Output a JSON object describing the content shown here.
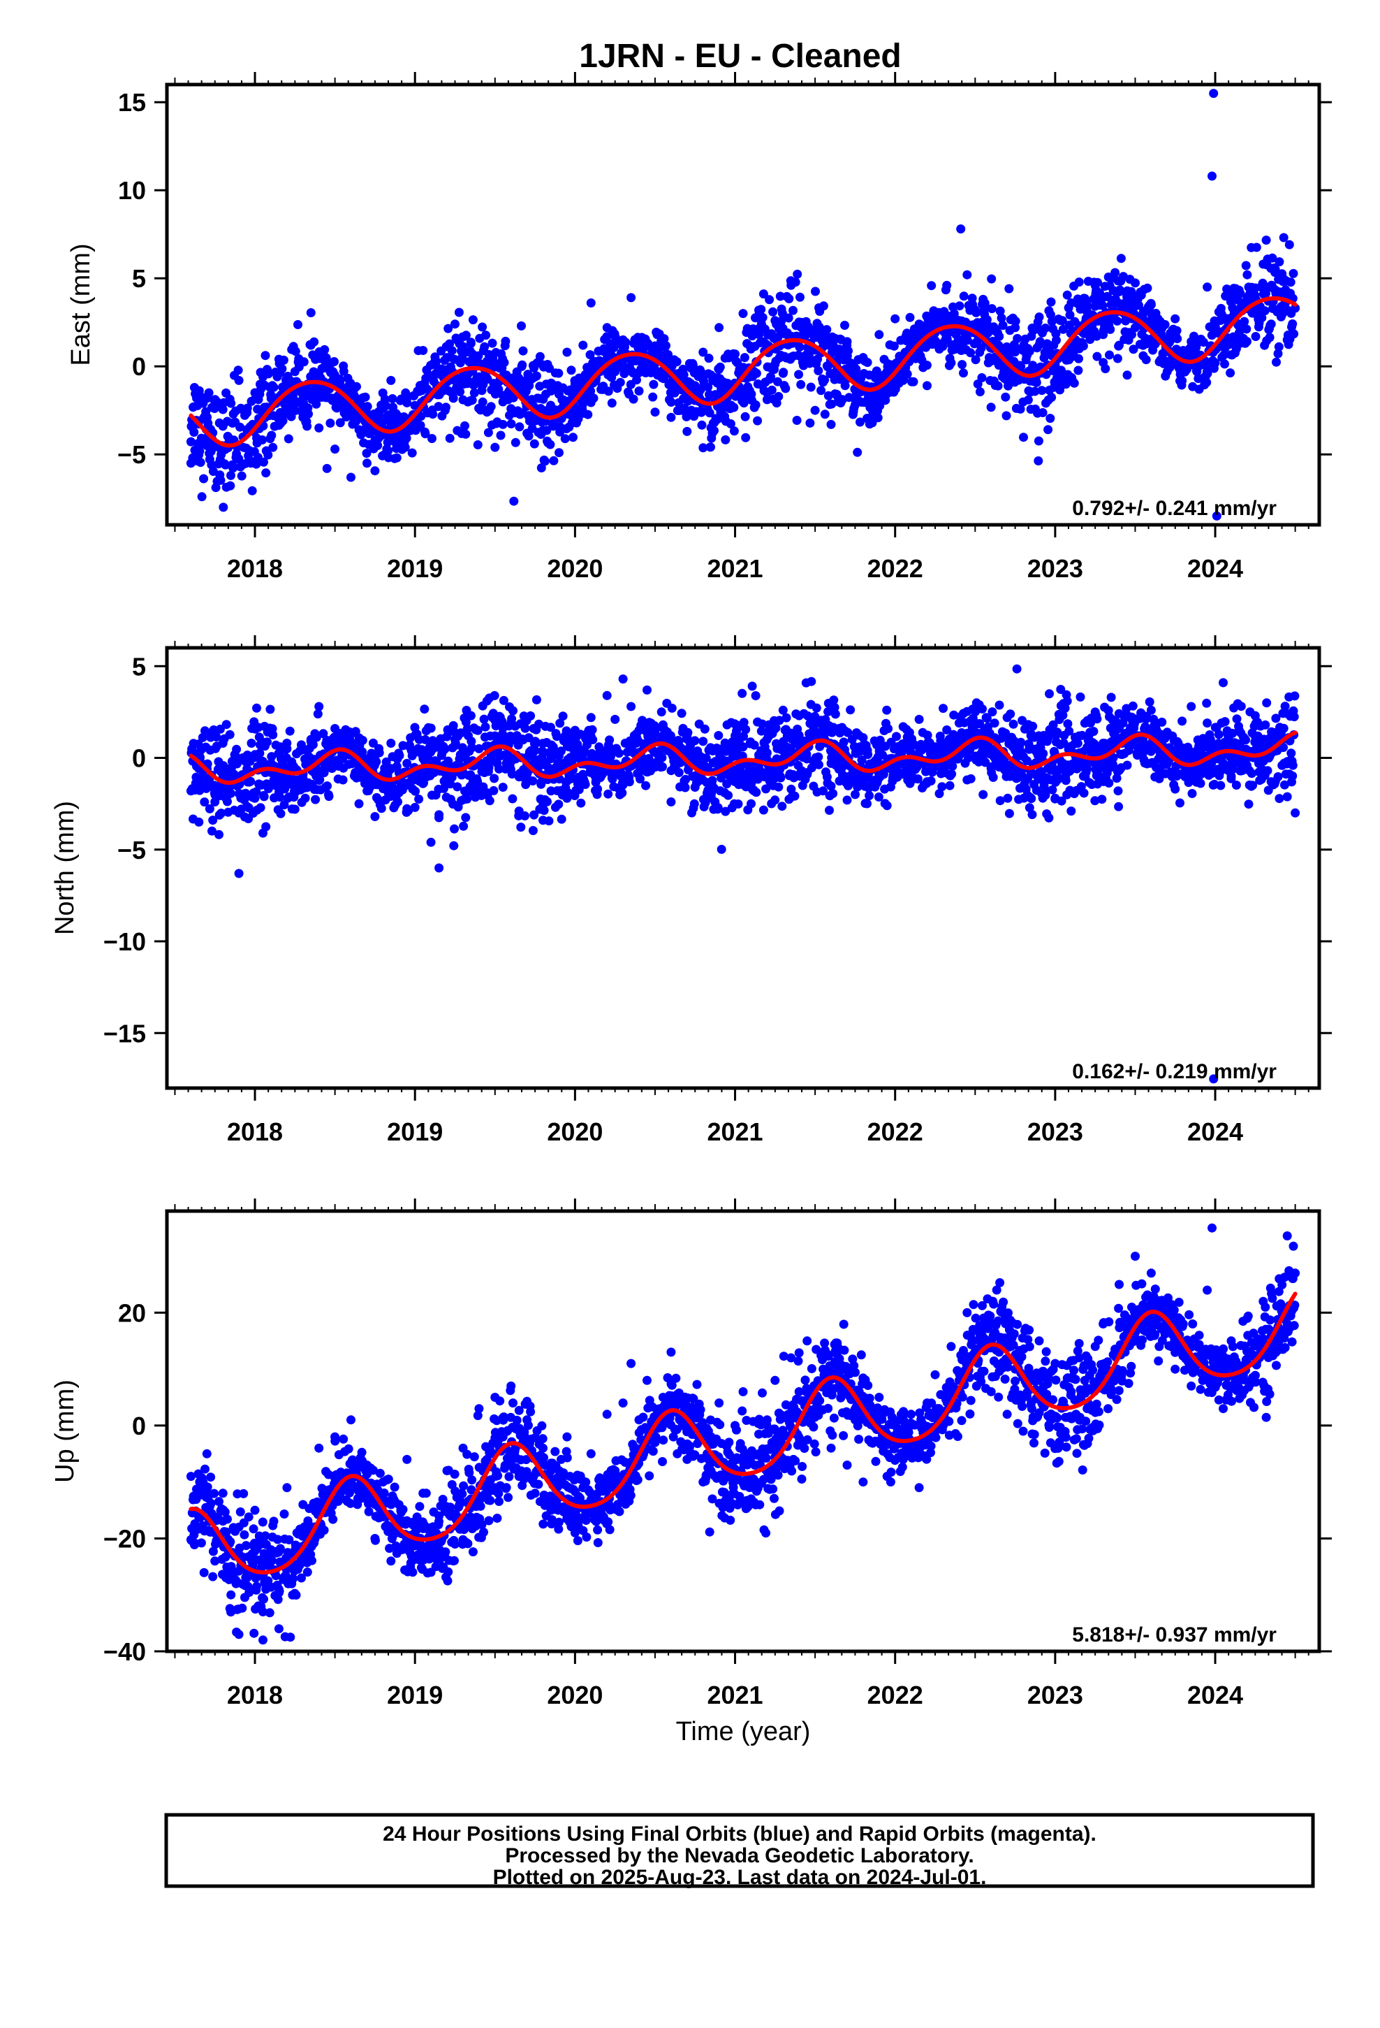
{
  "title": "1JRN  - EU - Cleaned",
  "xlabel": "Time (year)",
  "colors": {
    "points": "#0000ff",
    "fit": "#ff0000",
    "frame": "#000000"
  },
  "footer": {
    "lines": [
      "24 Hour Positions Using Final Orbits (blue) and Rapid Orbits (magenta).",
      "Processed by the Nevada Geodetic Laboratory.",
      "Plotted on 2025-Aug-23. Last data on 2024-Jul-01."
    ]
  },
  "chart_data": [
    {
      "type": "scatter",
      "component": "East",
      "ylabel": "East (mm)",
      "xlim": [
        2017.45,
        2024.65
      ],
      "ylim": [
        -9,
        16
      ],
      "xticks": [
        "2018",
        "2019",
        "2020",
        "2021",
        "2022",
        "2023",
        "2024"
      ],
      "yticks": [
        15,
        10,
        5,
        0,
        -5
      ],
      "yticklabels": [
        "15",
        "10",
        "5",
        "0",
        "−5"
      ],
      "rate_label": "0.792+/- 0.241 mm/yr",
      "data_start": 2017.6,
      "data_end": 2024.5,
      "series": [
        {
          "name": "Final Orbits",
          "kind": "points",
          "x": [
            2017.6,
            2017.65,
            2017.7,
            2017.75,
            2017.8,
            2017.85,
            2017.9,
            2017.95,
            2018.0,
            2018.05,
            2018.1,
            2018.15,
            2018.2,
            2018.25,
            2018.3,
            2018.35,
            2018.4,
            2018.45,
            2018.5,
            2018.55,
            2018.6,
            2018.65,
            2018.7,
            2018.75,
            2018.8,
            2018.85,
            2018.9,
            2018.95,
            2019.0,
            2019.05,
            2019.1,
            2019.15,
            2019.2,
            2019.25,
            2019.3,
            2019.35,
            2019.4,
            2019.45,
            2019.5,
            2019.55,
            2019.6,
            2019.65,
            2019.7,
            2019.75,
            2019.8,
            2019.85,
            2019.9,
            2019.95,
            2020.0,
            2020.05,
            2020.1,
            2020.15,
            2020.2,
            2020.25,
            2020.3,
            2020.35,
            2020.4,
            2020.45,
            2020.5,
            2020.55,
            2020.6,
            2020.65,
            2020.7,
            2020.75,
            2020.8,
            2020.85,
            2020.9,
            2020.95,
            2021.0,
            2021.05,
            2021.1,
            2021.15,
            2021.2,
            2021.25,
            2021.3,
            2021.35,
            2021.4,
            2021.45,
            2021.5,
            2021.55,
            2021.6,
            2021.65,
            2021.7,
            2021.75,
            2021.8,
            2021.85,
            2021.9,
            2021.95,
            2022.0,
            2022.05,
            2022.1,
            2022.15,
            2022.2,
            2022.25,
            2022.3,
            2022.35,
            2022.4,
            2022.45,
            2022.5,
            2022.55,
            2022.6,
            2022.65,
            2022.7,
            2022.75,
            2022.8,
            2022.85,
            2022.9,
            2022.95,
            2023.0,
            2023.05,
            2023.1,
            2023.15,
            2023.2,
            2023.25,
            2023.3,
            2023.35,
            2023.4,
            2023.45,
            2023.5,
            2023.55,
            2023.6,
            2023.65,
            2023.7,
            2023.75,
            2023.8,
            2023.85,
            2023.9,
            2023.95,
            2024.0,
            2024.05,
            2024.1,
            2024.15,
            2024.2,
            2024.25,
            2024.3,
            2024.35,
            2024.4,
            2024.45,
            2024.5,
            2023.99,
            2023.98,
            2022.41,
            2024.01
          ],
          "y": [
            -5.5,
            -3.1,
            -4.5,
            -2.0,
            -3.4,
            -2.1,
            -0.8,
            -3.6,
            -1.5,
            -0.6,
            -2.3,
            0.4,
            -1.8,
            -0.3,
            -2.9,
            1.2,
            -3.5,
            -5.8,
            -4.7,
            -2.0,
            -6.3,
            -3.6,
            -5.5,
            -4.2,
            -2.4,
            -0.8,
            -4.0,
            -1.8,
            -3.3,
            0.9,
            -1.5,
            -0.2,
            0.5,
            2.4,
            -1.9,
            1.3,
            -0.6,
            -2.6,
            -4.6,
            -3.3,
            -2.4,
            -1.0,
            -3.8,
            -0.6,
            -2.5,
            -1.4,
            -4.9,
            0.8,
            -1.0,
            1.2,
            3.6,
            0.1,
            2.2,
            -0.3,
            1.5,
            3.9,
            -1.4,
            1.3,
            -2.6,
            0.6,
            -2.9,
            -0.4,
            -3.7,
            -1.1,
            0.8,
            -0.5,
            2.2,
            -1.8,
            0.7,
            3.0,
            -0.1,
            1.8,
            -1.5,
            2.6,
            -0.4,
            4.6,
            0.6,
            2.1,
            -2.5,
            -0.9,
            -3.3,
            -0.4,
            1.4,
            -2.2,
            0.5,
            -1.6,
            1.8,
            -0.3,
            2.7,
            -0.8,
            0.9,
            2.4,
            -1.1,
            1.3,
            3.0,
            0.2,
            2.6,
            5.2,
            1.3,
            3.8,
            0.3,
            1.7,
            -0.8,
            2.2,
            0.9,
            -0.5,
            2.8,
            1.1,
            0.1,
            2.1,
            3.6,
            1.0,
            2.5,
            4.6,
            1.8,
            3.5,
            1.2,
            -0.5,
            2.2,
            0.6,
            3.5,
            1.8,
            -0.3,
            2.7,
            0.9,
            1.4,
            -1.3,
            4.5,
            0.2,
            2.8,
            4.1,
            1.9,
            5.2,
            3.0,
            5.8,
            2.4,
            4.0,
            1.5,
            3.3,
            15.5,
            10.8,
            7.8,
            -8.5
          ]
        },
        {
          "name": "Model fit",
          "kind": "line",
          "trend_mm_per_yr": 0.792,
          "value_at_2021": -0.25,
          "annual": {
            "amplitude": 1.6,
            "peak_year_fraction": 0.35
          },
          "semiannual": {
            "amplitude": 0.15,
            "peak_year_fraction": 0.1
          }
        }
      ]
    },
    {
      "type": "scatter",
      "component": "North",
      "ylabel": "North (mm)",
      "xlim": [
        2017.45,
        2024.65
      ],
      "ylim": [
        -18,
        6
      ],
      "xticks": [
        "2018",
        "2019",
        "2020",
        "2021",
        "2022",
        "2023",
        "2024"
      ],
      "yticks": [
        5,
        0,
        -5,
        -10,
        -15
      ],
      "yticklabels": [
        "5",
        "0",
        "−5",
        "−10",
        "−15"
      ],
      "rate_label": "0.162+/- 0.219 mm/yr",
      "data_start": 2017.6,
      "data_end": 2024.5,
      "series": [
        {
          "name": "Final Orbits",
          "kind": "points",
          "x": [
            2017.6,
            2017.65,
            2017.7,
            2017.75,
            2017.8,
            2017.85,
            2017.9,
            2017.95,
            2018.0,
            2018.05,
            2018.1,
            2018.15,
            2018.2,
            2018.25,
            2018.3,
            2018.35,
            2018.4,
            2018.45,
            2018.5,
            2018.55,
            2018.6,
            2018.65,
            2018.7,
            2018.75,
            2018.8,
            2018.85,
            2018.9,
            2018.95,
            2019.0,
            2019.05,
            2019.1,
            2019.15,
            2019.2,
            2019.25,
            2019.3,
            2019.35,
            2019.4,
            2019.45,
            2019.5,
            2019.55,
            2019.6,
            2019.65,
            2019.7,
            2019.75,
            2019.8,
            2019.85,
            2019.9,
            2019.95,
            2020.0,
            2020.05,
            2020.1,
            2020.15,
            2020.2,
            2020.25,
            2020.3,
            2020.35,
            2020.4,
            2020.45,
            2020.5,
            2020.55,
            2020.6,
            2020.65,
            2020.7,
            2020.75,
            2020.8,
            2020.85,
            2020.9,
            2020.95,
            2021.0,
            2021.05,
            2021.1,
            2021.15,
            2021.2,
            2021.25,
            2021.3,
            2021.35,
            2021.4,
            2021.45,
            2021.5,
            2021.55,
            2021.6,
            2021.65,
            2021.7,
            2021.75,
            2021.8,
            2021.85,
            2021.9,
            2021.95,
            2022.0,
            2022.05,
            2022.1,
            2022.15,
            2022.2,
            2022.25,
            2022.3,
            2022.35,
            2022.4,
            2022.45,
            2022.5,
            2022.55,
            2022.6,
            2022.65,
            2022.7,
            2022.75,
            2022.8,
            2022.85,
            2022.9,
            2022.95,
            2023.0,
            2023.05,
            2023.1,
            2023.15,
            2023.2,
            2023.25,
            2023.3,
            2023.35,
            2023.4,
            2023.45,
            2023.5,
            2023.55,
            2023.6,
            2023.65,
            2023.7,
            2023.75,
            2023.8,
            2023.85,
            2023.9,
            2023.95,
            2024.0,
            2024.05,
            2024.1,
            2024.15,
            2024.2,
            2024.25,
            2024.3,
            2024.35,
            2024.4,
            2024.45,
            2024.5,
            2017.9,
            2019.15,
            2023.99
          ],
          "y": [
            -1.8,
            -3.5,
            -0.4,
            -2.4,
            0.8,
            -1.5,
            -3.0,
            -0.6,
            -2.2,
            -4.1,
            -0.8,
            -1.9,
            0.5,
            -2.8,
            -1.1,
            0.9,
            2.8,
            -0.2,
            1.6,
            -1.2,
            0.4,
            -2.5,
            -0.7,
            -3.2,
            -1.5,
            0.8,
            -1.9,
            -0.3,
            -2.7,
            -1.4,
            -4.6,
            -3.1,
            -1.2,
            1.0,
            -0.8,
            2.3,
            0.5,
            3.1,
            1.2,
            -1.6,
            -0.2,
            -2.9,
            -1.1,
            0.4,
            -3.4,
            -1.8,
            0.2,
            -2.2,
            1.5,
            -0.9,
            2.2,
            0.6,
            3.4,
            2.1,
            4.3,
            2.8,
            1.5,
            3.7,
            -0.5,
            1.8,
            -2.4,
            -0.8,
            1.2,
            -1.6,
            0.9,
            -2.1,
            -0.4,
            1.8,
            -1.3,
            0.6,
            -2.5,
            -0.7,
            1.4,
            -1.1,
            2.6,
            0.4,
            2.3,
            -0.9,
            1.3,
            -1.8,
            -0.3,
            1.6,
            -2.3,
            -0.6,
            1.1,
            -1.5,
            0.8,
            -2.6,
            -0.4,
            1.7,
            -0.9,
            2.1,
            -1.3,
            0.6,
            2.7,
            0.3,
            1.9,
            -1.2,
            0.7,
            -2.0,
            1.1,
            -0.5,
            2.2,
            0.4,
            -1.6,
            1.3,
            -0.8,
            0.9,
            -2.2,
            -0.3,
            -2.9,
            1.2,
            -0.6,
            2.5,
            0.8,
            3.3,
            1.6,
            -0.4,
            2.0,
            0.5,
            2.6,
            -0.9,
            1.4,
            -1.7,
            0.3,
            2.8,
            -0.5,
            1.9,
            0.6,
            4.1,
            -1.0,
            1.5,
            -0.6,
            2.3,
            0.2,
            -1.3,
            1.1,
            -0.2,
            -3.0,
            -6.3,
            -6.0,
            -17.5
          ]
        },
        {
          "name": "Model fit",
          "kind": "line",
          "trend_mm_per_yr": 0.162,
          "value_at_2021": -0.1,
          "annual": {
            "amplitude": 0.55,
            "peak_year_fraction": 0.48
          },
          "semiannual": {
            "amplitude": 0.45,
            "peak_year_fraction": 0.05
          }
        }
      ]
    },
    {
      "type": "scatter",
      "component": "Up",
      "ylabel": "Up (mm)",
      "xlim": [
        2017.45,
        2024.65
      ],
      "ylim": [
        -40,
        38
      ],
      "xticks": [
        "2018",
        "2019",
        "2020",
        "2021",
        "2022",
        "2023",
        "2024"
      ],
      "yticks": [
        20,
        0,
        -20,
        -40
      ],
      "yticklabels": [
        "20",
        "0",
        "−20",
        "−40"
      ],
      "rate_label": "5.818+/- 0.937 mm/yr",
      "data_start": 2017.6,
      "data_end": 2024.5,
      "series": [
        {
          "name": "Final Orbits",
          "kind": "points",
          "x": [
            2017.6,
            2017.65,
            2017.7,
            2017.75,
            2017.8,
            2017.85,
            2017.9,
            2017.95,
            2018.0,
            2018.05,
            2018.1,
            2018.15,
            2018.2,
            2018.25,
            2018.3,
            2018.35,
            2018.4,
            2018.45,
            2018.5,
            2018.55,
            2018.6,
            2018.65,
            2018.7,
            2018.75,
            2018.8,
            2018.85,
            2018.9,
            2018.95,
            2019.0,
            2019.05,
            2019.1,
            2019.15,
            2019.2,
            2019.25,
            2019.3,
            2019.35,
            2019.4,
            2019.45,
            2019.5,
            2019.55,
            2019.6,
            2019.65,
            2019.7,
            2019.75,
            2019.8,
            2019.85,
            2019.9,
            2019.95,
            2020.0,
            2020.05,
            2020.1,
            2020.15,
            2020.2,
            2020.25,
            2020.3,
            2020.35,
            2020.4,
            2020.45,
            2020.5,
            2020.55,
            2020.6,
            2020.65,
            2020.7,
            2020.75,
            2020.8,
            2020.85,
            2020.9,
            2020.95,
            2021.0,
            2021.05,
            2021.1,
            2021.15,
            2021.2,
            2021.25,
            2021.3,
            2021.35,
            2021.4,
            2021.45,
            2021.5,
            2021.55,
            2021.6,
            2021.65,
            2021.7,
            2021.75,
            2021.8,
            2021.85,
            2021.9,
            2021.95,
            2022.0,
            2022.05,
            2022.1,
            2022.15,
            2022.2,
            2022.25,
            2022.3,
            2022.35,
            2022.4,
            2022.45,
            2022.5,
            2022.55,
            2022.6,
            2022.65,
            2022.7,
            2022.75,
            2022.8,
            2022.85,
            2022.9,
            2022.95,
            2023.0,
            2023.05,
            2023.1,
            2023.15,
            2023.2,
            2023.25,
            2023.3,
            2023.35,
            2023.4,
            2023.45,
            2023.5,
            2023.55,
            2023.6,
            2023.65,
            2023.7,
            2023.75,
            2023.8,
            2023.85,
            2023.9,
            2023.95,
            2024.0,
            2024.05,
            2024.1,
            2024.15,
            2024.2,
            2024.25,
            2024.3,
            2024.35,
            2024.4,
            2024.45,
            2024.5,
            2017.9,
            2018.05,
            2018.15,
            2023.98
          ],
          "y": [
            -9,
            -16,
            -5,
            -24,
            -12,
            -30,
            -18,
            -27,
            -15,
            -33,
            -22,
            -29,
            -11,
            -25,
            -14,
            -19,
            -4,
            -12,
            -2,
            -9,
            1,
            -13,
            -7,
            -20,
            -10,
            -24,
            -14,
            -6,
            -19,
            -12,
            -26,
            -16,
            -8,
            -21,
            -4,
            -13,
            3,
            -6,
            5,
            -2,
            7,
            -9,
            1,
            -12,
            -4,
            -15,
            -8,
            -2,
            -19,
            -11,
            -5,
            -14,
            2,
            -8,
            4,
            11,
            1,
            8,
            -3,
            5,
            13,
            2,
            -6,
            3,
            -10,
            -2,
            4,
            -8,
            0,
            6,
            -13,
            -5,
            1,
            8,
            -2,
            12,
            6,
            15,
            3,
            10,
            -4,
            7,
            -7,
            1,
            -10,
            -3,
            5,
            -9,
            0,
            -6,
            2,
            -11,
            4,
            9,
            1,
            14,
            8,
            20,
            12,
            17,
            6,
            13,
            2,
            10,
            -1,
            8,
            15,
            4,
            11,
            -2,
            6,
            12,
            3,
            14,
            18,
            9,
            25,
            17,
            30,
            20,
            27,
            14,
            22,
            10,
            18,
            7,
            16,
            24,
            12,
            3,
            15,
            8,
            19,
            11,
            22,
            14,
            26,
            18,
            27,
            -37,
            -38,
            -36,
            35
          ]
        },
        {
          "name": "Model fit",
          "kind": "line",
          "trend_mm_per_yr": 5.818,
          "value_at_2021": -3.0,
          "annual": {
            "amplitude": 7.0,
            "peak_year_fraction": 0.6
          },
          "semiannual": {
            "amplitude": 1.0,
            "peak_year_fraction": 0.1
          }
        }
      ]
    }
  ]
}
